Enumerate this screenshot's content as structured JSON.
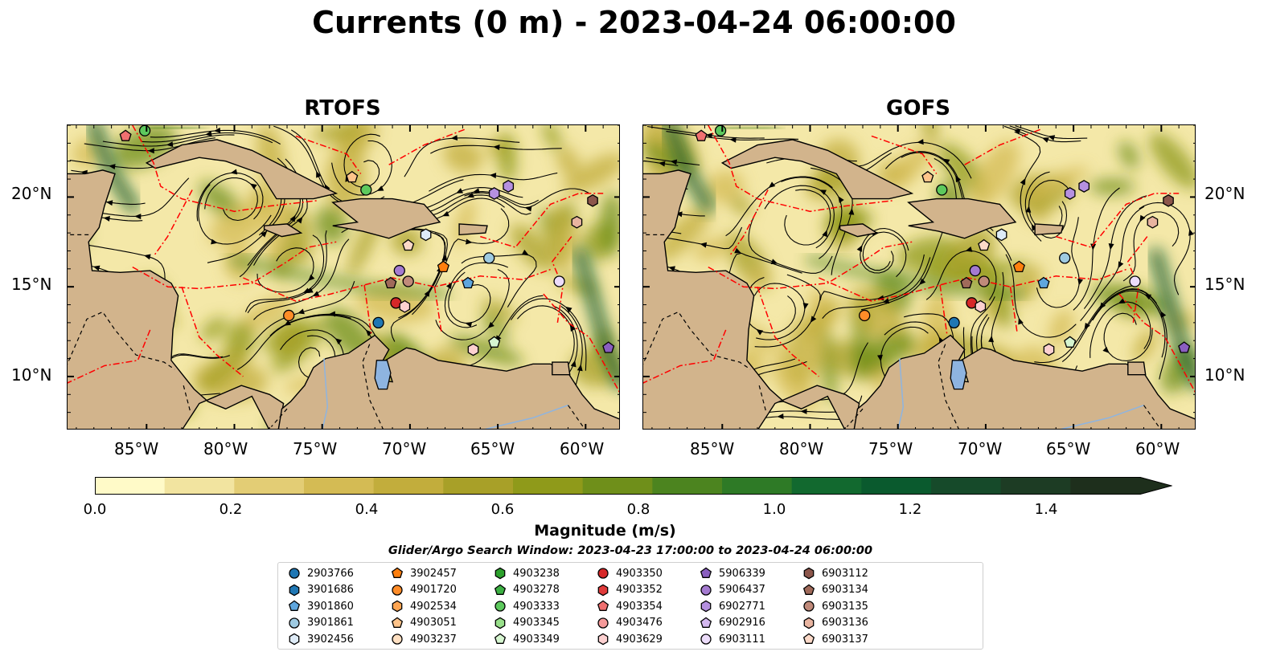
{
  "title": "Currents (0 m) - 2023-04-24 06:00:00",
  "panels": [
    {
      "title": "RTOFS",
      "variant": 0
    },
    {
      "title": "GOFS",
      "variant": 1
    }
  ],
  "map": {
    "lon_range": [
      -89.5,
      -58.0
    ],
    "lat_range": [
      7.0,
      24.0
    ],
    "lon_ticks": [
      "85°W",
      "80°W",
      "75°W",
      "70°W",
      "65°W",
      "60°W"
    ],
    "lat_ticks": [
      "20°N",
      "15°N",
      "10°N"
    ],
    "colors": {
      "land": "#d2b48c",
      "lake": "#8eb4e0",
      "eez": "#ff0000",
      "streamline": "#000000"
    }
  },
  "colorbar": {
    "label": "Magnitude (m/s)",
    "min": 0.0,
    "max": 1.5,
    "extend": "max",
    "ticks": [
      "0.0",
      "0.2",
      "0.4",
      "0.6",
      "0.8",
      "1.0",
      "1.2",
      "1.4"
    ],
    "colors": [
      "#fffac8",
      "#f2e4a0",
      "#e3cd75",
      "#d4bb54",
      "#c2ad3c",
      "#a8a028",
      "#8f9a1a",
      "#6f8f1a",
      "#4c841f",
      "#2e7a26",
      "#12692f",
      "#0a5a2e",
      "#164a2a",
      "#1d3c24",
      "#1e2f1c"
    ]
  },
  "legend": {
    "title": "Glider/Argo Search Window: 2023-04-23 17:00:00 to 2023-04-24 06:00:00",
    "items": [
      {
        "label": "2903766",
        "marker": "circle",
        "color": "#1f77b4"
      },
      {
        "label": "3901686",
        "marker": "hexagon",
        "color": "#1f77b4"
      },
      {
        "label": "3901860",
        "marker": "pentagon",
        "color": "#5fa6de"
      },
      {
        "label": "3901861",
        "marker": "circle",
        "color": "#9ecae1"
      },
      {
        "label": "3902456",
        "marker": "hexagon",
        "color": "#deebf7"
      },
      {
        "label": "3902457",
        "marker": "pentagon",
        "color": "#ff7f0e"
      },
      {
        "label": "4901720",
        "marker": "circle",
        "color": "#ff8c28"
      },
      {
        "label": "4902534",
        "marker": "hexagon",
        "color": "#ffa552"
      },
      {
        "label": "4903051",
        "marker": "pentagon",
        "color": "#ffc48a"
      },
      {
        "label": "4903237",
        "marker": "circle",
        "color": "#ffe0c2"
      },
      {
        "label": "4903238",
        "marker": "hexagon",
        "color": "#2ca02c"
      },
      {
        "label": "4903278",
        "marker": "pentagon",
        "color": "#3cb043"
      },
      {
        "label": "4903333",
        "marker": "circle",
        "color": "#5dc95d"
      },
      {
        "label": "4903345",
        "marker": "hexagon",
        "color": "#98df8a"
      },
      {
        "label": "4903349",
        "marker": "pentagon",
        "color": "#d6f5d0"
      },
      {
        "label": "4903350",
        "marker": "circle",
        "color": "#d62728"
      },
      {
        "label": "4903352",
        "marker": "hexagon",
        "color": "#e03a3a"
      },
      {
        "label": "4903354",
        "marker": "pentagon",
        "color": "#f07070"
      },
      {
        "label": "4903476",
        "marker": "circle",
        "color": "#f59a9a"
      },
      {
        "label": "4903629",
        "marker": "hexagon",
        "color": "#fcd0d0"
      },
      {
        "label": "5906339",
        "marker": "pentagon",
        "color": "#8a5fc0"
      },
      {
        "label": "5906437",
        "marker": "circle",
        "color": "#a47ad0"
      },
      {
        "label": "6902771",
        "marker": "hexagon",
        "color": "#b590e0"
      },
      {
        "label": "6902916",
        "marker": "pentagon",
        "color": "#d4b8f0"
      },
      {
        "label": "6903111",
        "marker": "circle",
        "color": "#ecdcfa"
      },
      {
        "label": "6903112",
        "marker": "hexagon",
        "color": "#8c564b"
      },
      {
        "label": "6903134",
        "marker": "pentagon",
        "color": "#a06a5a"
      },
      {
        "label": "6903135",
        "marker": "circle",
        "color": "#c08a7a"
      },
      {
        "label": "6903136",
        "marker": "hexagon",
        "color": "#e8b4a0"
      },
      {
        "label": "6903137",
        "marker": "pentagon",
        "color": "#fbd9c8"
      }
    ]
  },
  "floats": [
    {
      "id": "4903354",
      "lon": -86.2,
      "lat": 23.4
    },
    {
      "id": "4903333",
      "lon": -85.1,
      "lat": 23.7
    },
    {
      "id": "4903051",
      "lon": -73.3,
      "lat": 21.1
    },
    {
      "id": "4903333",
      "lon": -72.5,
      "lat": 20.4
    },
    {
      "id": "6902771",
      "lon": -65.2,
      "lat": 20.2
    },
    {
      "id": "6902771",
      "lon": -64.4,
      "lat": 20.6
    },
    {
      "id": "6903112",
      "lon": -59.6,
      "lat": 19.8
    },
    {
      "id": "6903136",
      "lon": -60.5,
      "lat": 18.6
    },
    {
      "id": "3902456",
      "lon": -69.1,
      "lat": 17.9
    },
    {
      "id": "6903137",
      "lon": -70.1,
      "lat": 17.3
    },
    {
      "id": "5906437",
      "lon": -70.6,
      "lat": 15.9
    },
    {
      "id": "3902457",
      "lon": -68.1,
      "lat": 16.1
    },
    {
      "id": "3901861",
      "lon": -65.5,
      "lat": 16.6
    },
    {
      "id": "6903134",
      "lon": -71.1,
      "lat": 15.2
    },
    {
      "id": "6903135",
      "lon": -70.1,
      "lat": 15.3
    },
    {
      "id": "3901860",
      "lon": -66.7,
      "lat": 15.2
    },
    {
      "id": "6903111",
      "lon": -61.5,
      "lat": 15.3
    },
    {
      "id": "4903350",
      "lon": -70.8,
      "lat": 14.1
    },
    {
      "id": "4903629",
      "lon": -70.3,
      "lat": 13.9
    },
    {
      "id": "4901720",
      "lon": -76.9,
      "lat": 13.4
    },
    {
      "id": "2903766",
      "lon": -71.8,
      "lat": 13.0
    },
    {
      "id": "4903349",
      "lon": -65.2,
      "lat": 11.9
    },
    {
      "id": "4903629",
      "lon": -66.4,
      "lat": 11.5
    },
    {
      "id": "5906339",
      "lon": -58.7,
      "lat": 11.6
    }
  ]
}
